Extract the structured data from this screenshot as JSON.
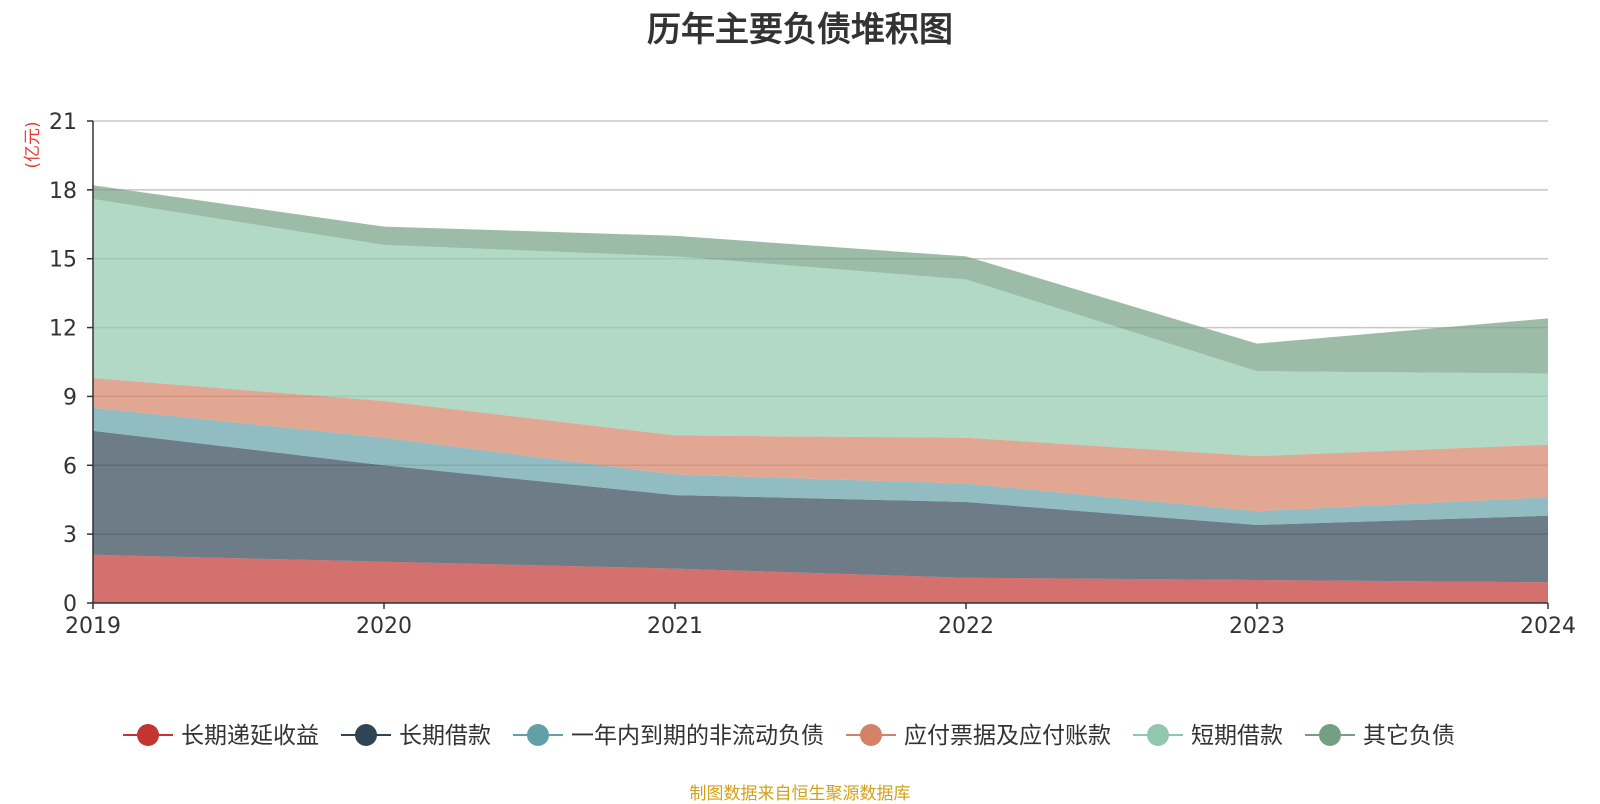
{
  "chart_data": {
    "type": "area",
    "stacked": true,
    "title": "历年主要负债堆积图",
    "unit_label": "(亿元)",
    "x": [
      "2019",
      "2020",
      "2021",
      "2022",
      "2023",
      "2024"
    ],
    "ylim": [
      0,
      21
    ],
    "yticks": [
      "0",
      "3",
      "6",
      "9",
      "12",
      "15",
      "18",
      "21"
    ],
    "grid": true,
    "legend_position": "bottom",
    "series": [
      {
        "name": "长期递延收益",
        "color": "#c23531",
        "values": [
          2.1,
          1.8,
          1.5,
          1.1,
          1.0,
          0.9
        ]
      },
      {
        "name": "长期借款",
        "color": "#2f4554",
        "values": [
          5.4,
          4.2,
          3.2,
          3.3,
          2.4,
          2.9
        ]
      },
      {
        "name": "一年内到期的非流动负债",
        "color": "#61a0a8",
        "values": [
          1.0,
          1.2,
          0.9,
          0.8,
          0.6,
          0.8
        ]
      },
      {
        "name": "应付票据及应付账款",
        "color": "#d48265",
        "values": [
          1.3,
          1.6,
          1.7,
          2.0,
          2.4,
          2.3
        ]
      },
      {
        "name": "短期借款",
        "color": "#91c7ae",
        "values": [
          7.8,
          6.8,
          7.8,
          6.9,
          3.7,
          3.1
        ]
      },
      {
        "name": "其它负债",
        "color": "#749f83",
        "values": [
          0.6,
          0.8,
          0.9,
          1.0,
          1.2,
          2.4
        ]
      }
    ]
  },
  "source_note": "制图数据来自恒生聚源数据库"
}
